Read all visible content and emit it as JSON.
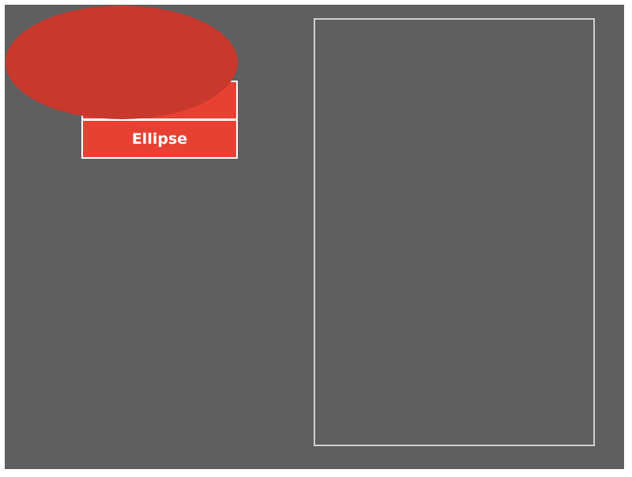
{
  "options": [
    {
      "label": ""
    },
    {
      "label": "Ellipse"
    }
  ],
  "colors": {
    "canvas_bg": "#5f5f5f",
    "option_fill": "#e84134",
    "shape_fill": "#c8382d",
    "option_border": "#ffffff",
    "drop_zone_border": "#cfcfcf"
  },
  "shape": {
    "type": "ellipse"
  }
}
